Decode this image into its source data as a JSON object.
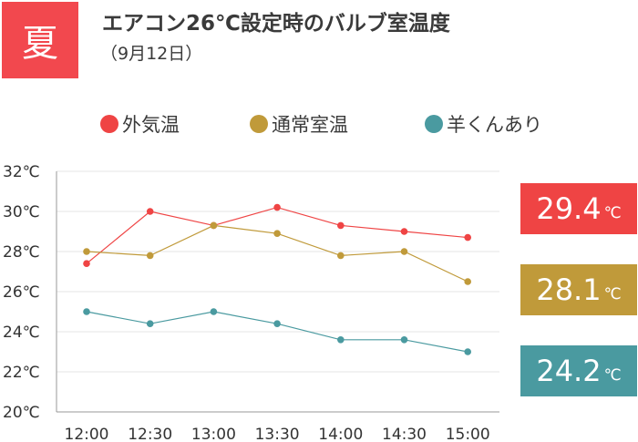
{
  "header": {
    "season": "夏",
    "title": "エアコン26℃設定時のバルブ室温度",
    "subtitle": "（9月12日）"
  },
  "colors": {
    "badge": "#f2484e",
    "outside": "#ef4444",
    "normal": "#c09a3a",
    "sheep": "#4a9aa0",
    "grid": "#e6e6e6",
    "axis": "#999999"
  },
  "chart_data": {
    "type": "line",
    "categories": [
      "12:00",
      "12:30",
      "13:00",
      "13:30",
      "14:00",
      "14:30",
      "15:00"
    ],
    "ylim": [
      20,
      32
    ],
    "yticks": [
      "20℃",
      "22℃",
      "24℃",
      "26℃",
      "28℃",
      "30℃",
      "32℃"
    ],
    "grid": true,
    "legend_position": "top",
    "series": [
      {
        "name": "外気温",
        "color": "#ef4444",
        "values": [
          27.4,
          30.0,
          29.3,
          30.2,
          29.3,
          29.0,
          28.7
        ]
      },
      {
        "name": "通常室温",
        "color": "#c09a3a",
        "values": [
          28.0,
          27.8,
          29.3,
          28.9,
          27.8,
          28.0,
          26.5
        ]
      },
      {
        "name": "羊くんあり",
        "color": "#4a9aa0",
        "values": [
          25.0,
          24.4,
          25.0,
          24.4,
          23.6,
          23.6,
          23.0
        ]
      }
    ],
    "summary": [
      {
        "value": "29.4",
        "unit": "℃",
        "color": "#ef4444"
      },
      {
        "value": "28.1",
        "unit": "℃",
        "color": "#c09a3a"
      },
      {
        "value": "24.2",
        "unit": "℃",
        "color": "#4a9aa0"
      }
    ]
  }
}
